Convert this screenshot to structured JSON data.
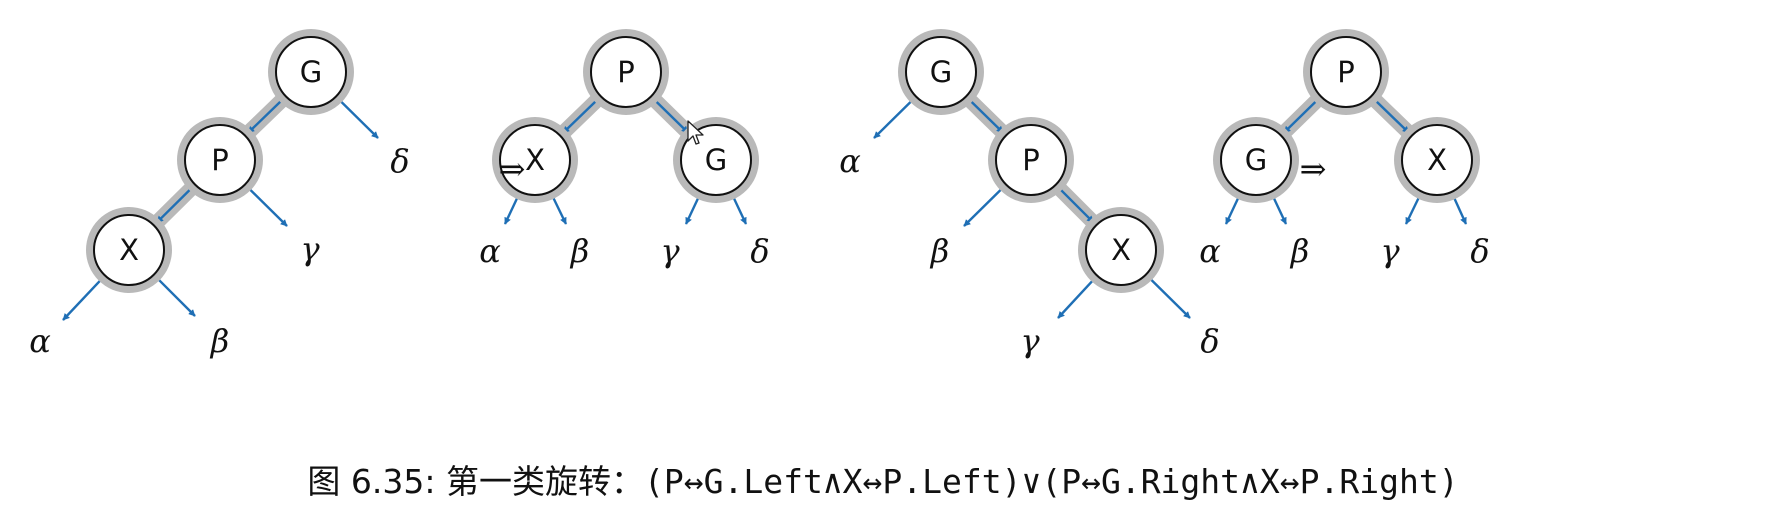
{
  "figure": {
    "caption_prefix": "图 6.35: 第一类旋转：",
    "caption_formula": "(P↔G.Left∧X↔P.Left)∨(P↔G.Right∧X↔P.Right)",
    "transform_symbol": "⇒"
  },
  "colors": {
    "edge": "#1f6fb5",
    "highlight": "#b9b9b9",
    "node_fill": "#ffffff",
    "node_stroke": "#111111"
  },
  "diagrams": [
    {
      "nodes": [
        {
          "id": "G",
          "label": "G"
        },
        {
          "id": "P",
          "label": "P"
        },
        {
          "id": "X",
          "label": "X"
        }
      ],
      "leaves": [
        "α",
        "β",
        "γ",
        "δ"
      ]
    },
    {
      "nodes": [
        {
          "id": "P",
          "label": "P"
        },
        {
          "id": "X",
          "label": "X"
        },
        {
          "id": "G",
          "label": "G"
        }
      ],
      "leaves": [
        "α",
        "β",
        "γ",
        "δ"
      ]
    },
    {
      "nodes": [
        {
          "id": "G",
          "label": "G"
        },
        {
          "id": "P",
          "label": "P"
        },
        {
          "id": "X",
          "label": "X"
        }
      ],
      "leaves": [
        "α",
        "β",
        "γ",
        "δ"
      ]
    },
    {
      "nodes": [
        {
          "id": "P",
          "label": "P"
        },
        {
          "id": "G",
          "label": "G"
        },
        {
          "id": "X",
          "label": "X"
        }
      ],
      "leaves": [
        "α",
        "β",
        "γ",
        "δ"
      ]
    }
  ]
}
